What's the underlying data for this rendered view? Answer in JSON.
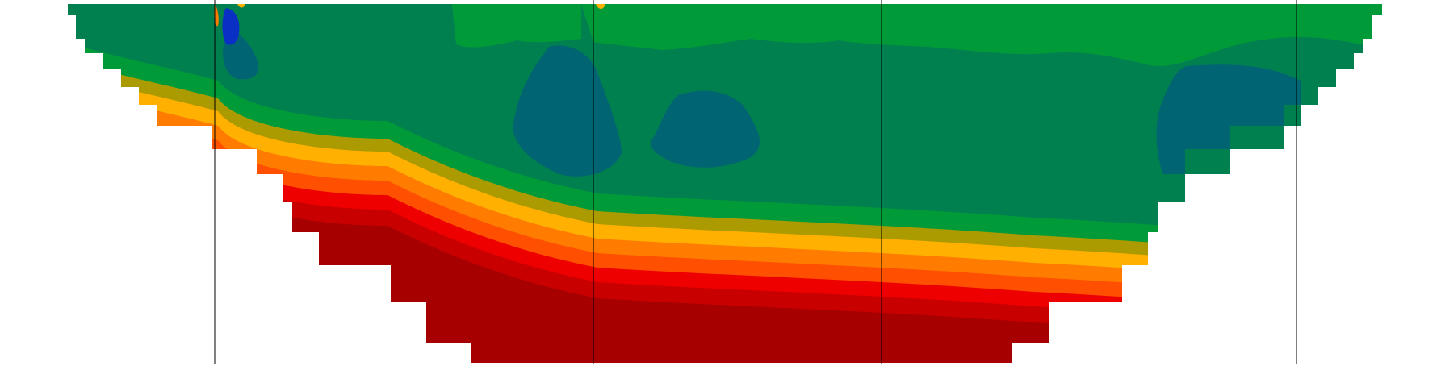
{
  "chart_data": {
    "type": "heatmap",
    "title": "",
    "xlabel": "",
    "ylabel": "",
    "grid": false,
    "legend": "none",
    "colors": {
      "deep_blue": "#0a2fc4",
      "teal": "#006472",
      "dark_green": "#00804f",
      "green": "#009a39",
      "olive": "#ab9a00",
      "yellow": "#ffb000",
      "orange": "#ff7c00",
      "orange_red": "#ff4f00",
      "red": "#ee0000",
      "dark_red": "#c80000",
      "maroon": "#a60000",
      "line": "#000000",
      "background": "#ffffff"
    },
    "class_order": [
      "deep_blue",
      "teal",
      "dark_green",
      "green",
      "olive",
      "yellow",
      "orange",
      "orange_red",
      "red",
      "dark_red",
      "maroon"
    ]
  }
}
